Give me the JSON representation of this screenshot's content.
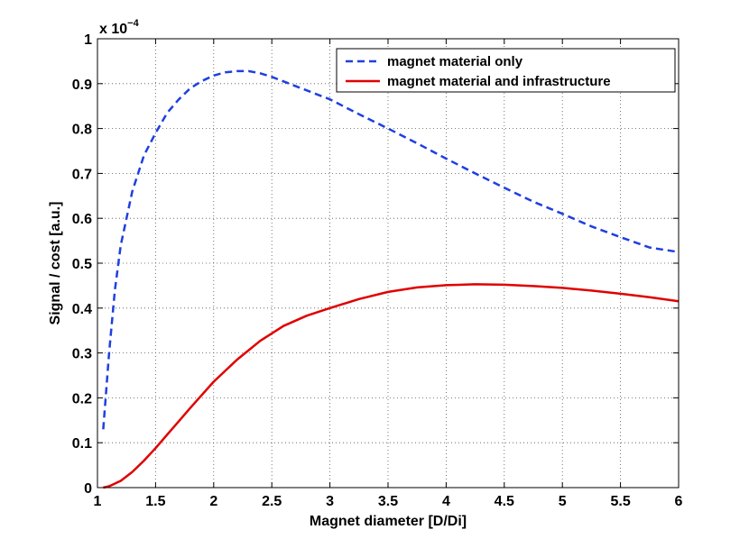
{
  "chart_data": {
    "type": "line",
    "title": "",
    "xlabel": "Magnet diameter [D/Di]",
    "ylabel": "Signal / cost [a.u.]",
    "xlim": [
      1,
      6
    ],
    "ylim": [
      0,
      1
    ],
    "y_multiplier_base": "x 10",
    "y_multiplier_exponent": "−4",
    "grid": true,
    "legend_position": "top-right",
    "x_ticks": [
      "1",
      "1.5",
      "2",
      "2.5",
      "3",
      "3.5",
      "4",
      "4.5",
      "5",
      "5.5",
      "6"
    ],
    "y_ticks": [
      "0",
      "0.1",
      "0.2",
      "0.3",
      "0.4",
      "0.5",
      "0.6",
      "0.7",
      "0.8",
      "0.9",
      "1"
    ],
    "series": [
      {
        "name": "magnet material only",
        "color": "#1f3fe0",
        "style": "dashed",
        "x": [
          1.05,
          1.1,
          1.15,
          1.2,
          1.3,
          1.4,
          1.5,
          1.6,
          1.7,
          1.8,
          1.9,
          2.0,
          2.1,
          2.2,
          2.3,
          2.4,
          2.5,
          2.75,
          3.0,
          3.25,
          3.5,
          3.75,
          4.0,
          4.25,
          4.5,
          4.75,
          5.0,
          5.25,
          5.5,
          5.75,
          6.0
        ],
        "y": [
          0.13,
          0.3,
          0.44,
          0.54,
          0.66,
          0.74,
          0.79,
          0.835,
          0.865,
          0.89,
          0.906,
          0.918,
          0.925,
          0.928,
          0.928,
          0.923,
          0.915,
          0.89,
          0.865,
          0.832,
          0.8,
          0.767,
          0.733,
          0.7,
          0.668,
          0.637,
          0.61,
          0.582,
          0.558,
          0.535,
          0.525
        ]
      },
      {
        "name": "magnet material and infrastructure",
        "color": "#e00000",
        "style": "solid",
        "x": [
          1.05,
          1.1,
          1.2,
          1.3,
          1.4,
          1.5,
          1.6,
          1.7,
          1.8,
          1.9,
          2.0,
          2.2,
          2.4,
          2.6,
          2.8,
          3.0,
          3.25,
          3.5,
          3.75,
          4.0,
          4.25,
          4.5,
          4.75,
          5.0,
          5.25,
          5.5,
          5.75,
          6.0
        ],
        "y": [
          0.0,
          0.003,
          0.015,
          0.035,
          0.06,
          0.088,
          0.118,
          0.148,
          0.178,
          0.207,
          0.236,
          0.285,
          0.327,
          0.36,
          0.383,
          0.4,
          0.42,
          0.436,
          0.446,
          0.451,
          0.453,
          0.452,
          0.449,
          0.445,
          0.439,
          0.432,
          0.424,
          0.415
        ]
      }
    ]
  }
}
